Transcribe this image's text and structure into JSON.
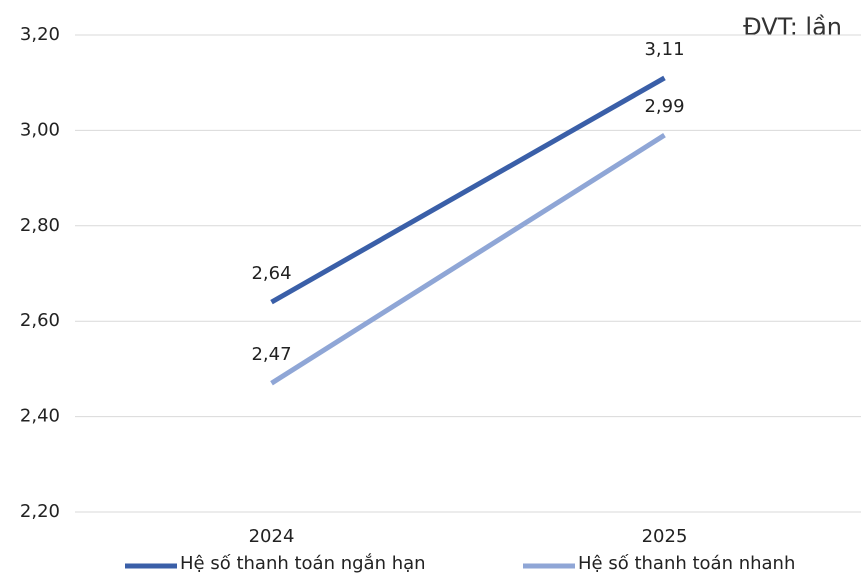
{
  "chart_data": {
    "type": "line",
    "annotation": "ĐVT: lần",
    "categories": [
      "2024",
      "2025"
    ],
    "series": [
      {
        "name": "Hệ số thanh toán ngắn hạn",
        "color": "#3a5fa8",
        "values": [
          2.64,
          3.11
        ],
        "value_labels": [
          "2,64",
          "3,11"
        ]
      },
      {
        "name": "Hệ số thanh toán nhanh",
        "color": "#8fa6d6",
        "values": [
          2.47,
          2.99
        ],
        "value_labels": [
          "2,47",
          "2,99"
        ]
      }
    ],
    "ylim": [
      2.2,
      3.2
    ],
    "yticks": [
      {
        "value": 2.2,
        "label": "2,20"
      },
      {
        "value": 2.4,
        "label": "2,40"
      },
      {
        "value": 2.6,
        "label": "2,60"
      },
      {
        "value": 2.8,
        "label": "2,80"
      },
      {
        "value": 3.0,
        "label": "3,00"
      },
      {
        "value": 3.2,
        "label": "3,20"
      }
    ],
    "grid": true,
    "legend": "bottom"
  }
}
